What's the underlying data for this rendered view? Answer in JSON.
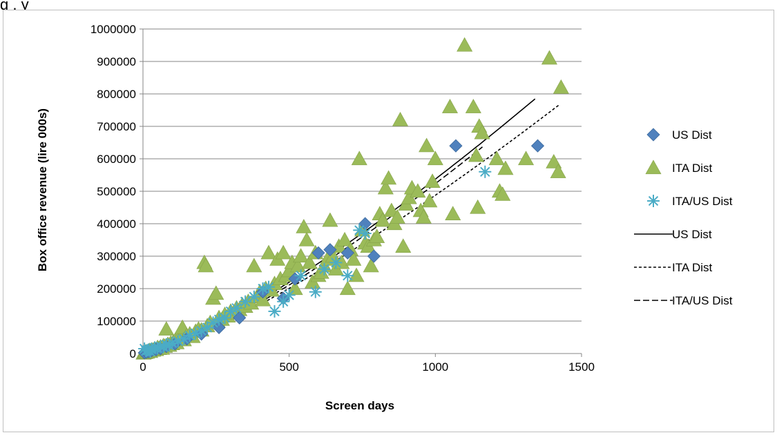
{
  "cropped_caption": "g                                                                         , y",
  "chart_data": {
    "type": "scatter",
    "title": "",
    "xlabel": "Screen days",
    "ylabel": "Box office revenue (lire 000s)",
    "xlim": [
      0,
      1500
    ],
    "ylim": [
      0,
      1000000
    ],
    "x_ticks": [
      0,
      500,
      1000,
      1500
    ],
    "y_ticks": [
      0,
      100000,
      200000,
      300000,
      400000,
      500000,
      600000,
      700000,
      800000,
      900000,
      1000000
    ],
    "grid": "horizontal",
    "legend_position": "right",
    "colors": {
      "us": "#4f81bd",
      "ita": "#9bbb59",
      "itaus": "#4bacc6",
      "trend": "#000000",
      "grid": "#868686",
      "axis": "#868686"
    },
    "series": [
      {
        "name": "US Dist",
        "marker": "diamond",
        "points": [
          [
            5,
            2000
          ],
          [
            12,
            4000
          ],
          [
            20,
            6000
          ],
          [
            30,
            9000
          ],
          [
            45,
            12000
          ],
          [
            60,
            15000
          ],
          [
            80,
            22000
          ],
          [
            110,
            30000
          ],
          [
            150,
            45000
          ],
          [
            200,
            60000
          ],
          [
            260,
            80000
          ],
          [
            330,
            110000
          ],
          [
            410,
            190000
          ],
          [
            480,
            170000
          ],
          [
            520,
            230000
          ],
          [
            600,
            310000
          ],
          [
            640,
            320000
          ],
          [
            700,
            310000
          ],
          [
            760,
            400000
          ],
          [
            790,
            300000
          ],
          [
            1070,
            640000
          ],
          [
            1350,
            640000
          ]
        ]
      },
      {
        "name": "ITA Dist",
        "marker": "triangle",
        "points": [
          [
            2,
            1000
          ],
          [
            5,
            2500
          ],
          [
            8,
            3000
          ],
          [
            10,
            5000
          ],
          [
            14,
            4000
          ],
          [
            18,
            7000
          ],
          [
            22,
            9000
          ],
          [
            25,
            6000
          ],
          [
            30,
            11000
          ],
          [
            35,
            10000
          ],
          [
            40,
            14000
          ],
          [
            45,
            12000
          ],
          [
            50,
            18000
          ],
          [
            55,
            15000
          ],
          [
            60,
            20000
          ],
          [
            65,
            16000
          ],
          [
            70,
            24000
          ],
          [
            75,
            22000
          ],
          [
            80,
            75000
          ],
          [
            85,
            28000
          ],
          [
            90,
            25000
          ],
          [
            95,
            32000
          ],
          [
            100,
            30000
          ],
          [
            105,
            35000
          ],
          [
            110,
            40000
          ],
          [
            115,
            33000
          ],
          [
            120,
            45000
          ],
          [
            130,
            50000
          ],
          [
            135,
            80000
          ],
          [
            140,
            42000
          ],
          [
            150,
            55000
          ],
          [
            160,
            60000
          ],
          [
            170,
            52000
          ],
          [
            180,
            68000
          ],
          [
            190,
            75000
          ],
          [
            200,
            72000
          ],
          [
            210,
            280000
          ],
          [
            215,
            270000
          ],
          [
            220,
            85000
          ],
          [
            230,
            95000
          ],
          [
            240,
            170000
          ],
          [
            250,
            185000
          ],
          [
            255,
            100000
          ],
          [
            260,
            110000
          ],
          [
            270,
            105000
          ],
          [
            280,
            120000
          ],
          [
            290,
            115000
          ],
          [
            300,
            130000
          ],
          [
            310,
            125000
          ],
          [
            320,
            140000
          ],
          [
            330,
            135000
          ],
          [
            340,
            150000
          ],
          [
            350,
            145000
          ],
          [
            360,
            160000
          ],
          [
            370,
            155000
          ],
          [
            380,
            270000
          ],
          [
            390,
            175000
          ],
          [
            400,
            190000
          ],
          [
            410,
            165000
          ],
          [
            420,
            200000
          ],
          [
            430,
            310000
          ],
          [
            440,
            195000
          ],
          [
            450,
            215000
          ],
          [
            460,
            290000
          ],
          [
            470,
            230000
          ],
          [
            480,
            310000
          ],
          [
            490,
            240000
          ],
          [
            500,
            255000
          ],
          [
            510,
            280000
          ],
          [
            520,
            200000
          ],
          [
            530,
            270000
          ],
          [
            540,
            300000
          ],
          [
            550,
            390000
          ],
          [
            560,
            350000
          ],
          [
            570,
            280000
          ],
          [
            580,
            220000
          ],
          [
            590,
            310000
          ],
          [
            600,
            240000
          ],
          [
            610,
            250000
          ],
          [
            620,
            270000
          ],
          [
            630,
            290000
          ],
          [
            640,
            410000
          ],
          [
            650,
            300000
          ],
          [
            660,
            260000
          ],
          [
            670,
            330000
          ],
          [
            680,
            280000
          ],
          [
            690,
            350000
          ],
          [
            700,
            200000
          ],
          [
            710,
            320000
          ],
          [
            720,
            290000
          ],
          [
            730,
            240000
          ],
          [
            740,
            600000
          ],
          [
            750,
            380000
          ],
          [
            760,
            340000
          ],
          [
            770,
            330000
          ],
          [
            780,
            270000
          ],
          [
            790,
            350000
          ],
          [
            800,
            360000
          ],
          [
            810,
            430000
          ],
          [
            820,
            410000
          ],
          [
            830,
            510000
          ],
          [
            840,
            540000
          ],
          [
            850,
            440000
          ],
          [
            860,
            400000
          ],
          [
            870,
            420000
          ],
          [
            880,
            720000
          ],
          [
            890,
            330000
          ],
          [
            900,
            460000
          ],
          [
            910,
            480000
          ],
          [
            920,
            510000
          ],
          [
            940,
            500000
          ],
          [
            950,
            440000
          ],
          [
            960,
            420000
          ],
          [
            970,
            640000
          ],
          [
            980,
            470000
          ],
          [
            990,
            530000
          ],
          [
            1000,
            600000
          ],
          [
            1050,
            760000
          ],
          [
            1060,
            430000
          ],
          [
            1100,
            950000
          ],
          [
            1130,
            760000
          ],
          [
            1140,
            610000
          ],
          [
            1145,
            450000
          ],
          [
            1150,
            700000
          ],
          [
            1160,
            680000
          ],
          [
            1210,
            600000
          ],
          [
            1220,
            500000
          ],
          [
            1230,
            490000
          ],
          [
            1240,
            570000
          ],
          [
            1310,
            600000
          ],
          [
            1390,
            910000
          ],
          [
            1405,
            590000
          ],
          [
            1420,
            560000
          ],
          [
            1430,
            820000
          ]
        ]
      },
      {
        "name": "ITA/US Dist",
        "marker": "star",
        "points": [
          [
            5,
            15000
          ],
          [
            10,
            8000
          ],
          [
            15,
            10000
          ],
          [
            20,
            12000
          ],
          [
            25,
            6000
          ],
          [
            30,
            14000
          ],
          [
            40,
            18000
          ],
          [
            50,
            16000
          ],
          [
            60,
            22000
          ],
          [
            70,
            20000
          ],
          [
            80,
            28000
          ],
          [
            90,
            25000
          ],
          [
            100,
            32000
          ],
          [
            120,
            38000
          ],
          [
            140,
            45000
          ],
          [
            160,
            55000
          ],
          [
            180,
            62000
          ],
          [
            200,
            70000
          ],
          [
            220,
            80000
          ],
          [
            240,
            95000
          ],
          [
            260,
            105000
          ],
          [
            280,
            110000
          ],
          [
            300,
            130000
          ],
          [
            320,
            140000
          ],
          [
            350,
            160000
          ],
          [
            380,
            175000
          ],
          [
            410,
            200000
          ],
          [
            430,
            205000
          ],
          [
            450,
            130000
          ],
          [
            480,
            160000
          ],
          [
            500,
            180000
          ],
          [
            540,
            240000
          ],
          [
            590,
            190000
          ],
          [
            620,
            260000
          ],
          [
            660,
            280000
          ],
          [
            700,
            240000
          ],
          [
            740,
            380000
          ],
          [
            760,
            370000
          ],
          [
            1170,
            560000
          ]
        ]
      }
    ],
    "trendlines": [
      {
        "name": "US Dist",
        "style": "solid",
        "a": 72.5,
        "b": 1.29,
        "x_max": 1350
      },
      {
        "name": "ITA Dist",
        "style": "dotted",
        "a": 70.5,
        "b": 1.28,
        "x_max": 1430
      },
      {
        "name": "ITA/US Dist",
        "style": "dashed",
        "a": 61.5,
        "b": 1.31,
        "x_max": 1170
      }
    ]
  }
}
